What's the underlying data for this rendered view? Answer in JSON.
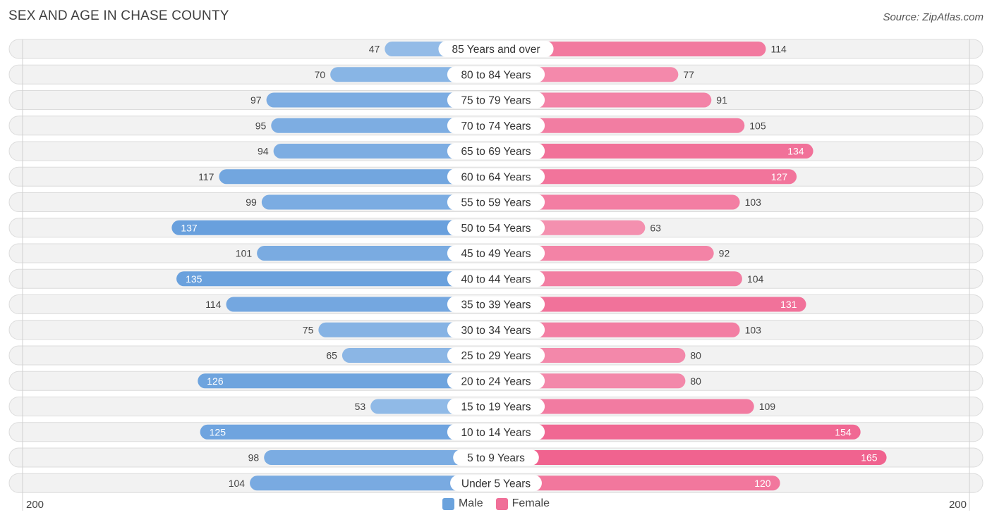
{
  "header": {
    "title": "SEX AND AGE IN CHASE COUNTY",
    "source": "Source: ZipAtlas.com"
  },
  "axis": {
    "left_label": "200",
    "right_label": "200"
  },
  "legend": {
    "male_label": "Male",
    "female_label": "Female",
    "male_color": "#6aa2dd",
    "female_color": "#f06f98"
  },
  "chart_data": {
    "type": "bar",
    "orientation": "horizontal-diverging",
    "title": "SEX AND AGE IN CHASE COUNTY",
    "xlim": [
      -200,
      200
    ],
    "categories": [
      "85 Years and over",
      "80 to 84 Years",
      "75 to 79 Years",
      "70 to 74 Years",
      "65 to 69 Years",
      "60 to 64 Years",
      "55 to 59 Years",
      "50 to 54 Years",
      "45 to 49 Years",
      "40 to 44 Years",
      "35 to 39 Years",
      "30 to 34 Years",
      "25 to 29 Years",
      "20 to 24 Years",
      "15 to 19 Years",
      "10 to 14 Years",
      "5 to 9 Years",
      "Under 5 Years"
    ],
    "series": [
      {
        "name": "Male",
        "values": [
          47,
          70,
          97,
          95,
          94,
          117,
          99,
          137,
          101,
          135,
          114,
          75,
          65,
          126,
          53,
          125,
          98,
          104
        ]
      },
      {
        "name": "Female",
        "values": [
          114,
          77,
          91,
          105,
          134,
          127,
          103,
          63,
          92,
          104,
          131,
          103,
          80,
          80,
          109,
          154,
          165,
          120
        ]
      }
    ],
    "legend_position": "bottom-center"
  }
}
